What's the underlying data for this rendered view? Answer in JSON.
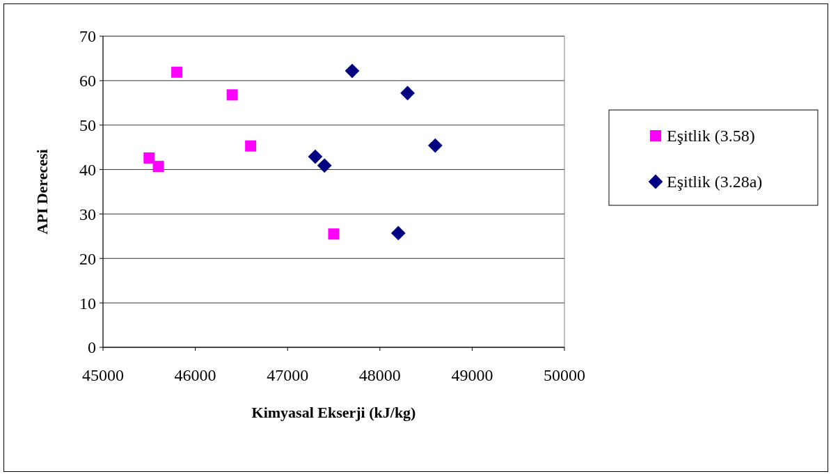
{
  "chart_data": {
    "type": "scatter",
    "xlabel": "Kimyasal Ekserji (kJ/kg)",
    "ylabel": "API Derecesi",
    "xlim": [
      45000,
      50000
    ],
    "xticks": [
      45000,
      46000,
      47000,
      48000,
      49000,
      50000
    ],
    "ylim": [
      0,
      70
    ],
    "yticks": [
      0,
      10,
      20,
      30,
      40,
      50,
      60,
      70
    ],
    "grid": "y",
    "legend": "right",
    "series": [
      {
        "name": "Eşitlik (3.58)",
        "color": "#ff00ff",
        "marker": "square",
        "x": [
          45500,
          45600,
          45800,
          46400,
          46600,
          47500
        ],
        "values": [
          42.6,
          40.7,
          61.9,
          56.8,
          45.3,
          25.5
        ]
      },
      {
        "name": "Eşitlik (3.28a)",
        "color": "#000080",
        "marker": "diamond",
        "x": [
          47300,
          47400,
          47700,
          48300,
          48600,
          48200
        ],
        "values": [
          42.9,
          40.9,
          62.2,
          57.2,
          45.4,
          25.7
        ]
      }
    ]
  }
}
